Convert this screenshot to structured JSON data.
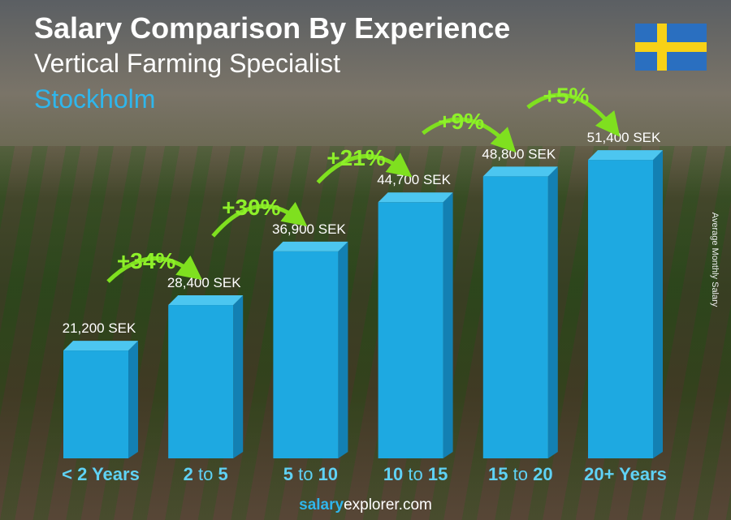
{
  "chart_data": {
    "type": "bar",
    "title": "Salary Comparison By Experience",
    "subtitle": "Vertical Farming Specialist",
    "location": "Stockholm",
    "ylabel": "Average Monthly Salary",
    "categories": [
      {
        "a": "< 2 Years",
        "mid": "",
        "b": ""
      },
      {
        "a": "2",
        "mid": "to",
        "b": "5"
      },
      {
        "a": "5",
        "mid": "to",
        "b": "10"
      },
      {
        "a": "10",
        "mid": "to",
        "b": "15"
      },
      {
        "a": "15",
        "mid": "to",
        "b": "20"
      },
      {
        "a": "20+ Years",
        "mid": "",
        "b": ""
      }
    ],
    "values": [
      21200,
      28400,
      36900,
      44700,
      48800,
      51400
    ],
    "value_labels": [
      "21,200 SEK",
      "28,400 SEK",
      "36,900 SEK",
      "44,700 SEK",
      "48,800 SEK",
      "51,400 SEK"
    ],
    "increases": [
      "+34%",
      "+30%",
      "+21%",
      "+9%",
      "+5%"
    ],
    "colors": {
      "bar": "#1ea9e1",
      "bar_side": "#1380b3",
      "bar_top": "#4cc6f0",
      "increase": "#8ef02a",
      "category": "#5fd2f5"
    }
  },
  "flag": "sweden-flag",
  "footer": {
    "brand_bold": "salary",
    "brand_rest": "explorer.com"
  }
}
